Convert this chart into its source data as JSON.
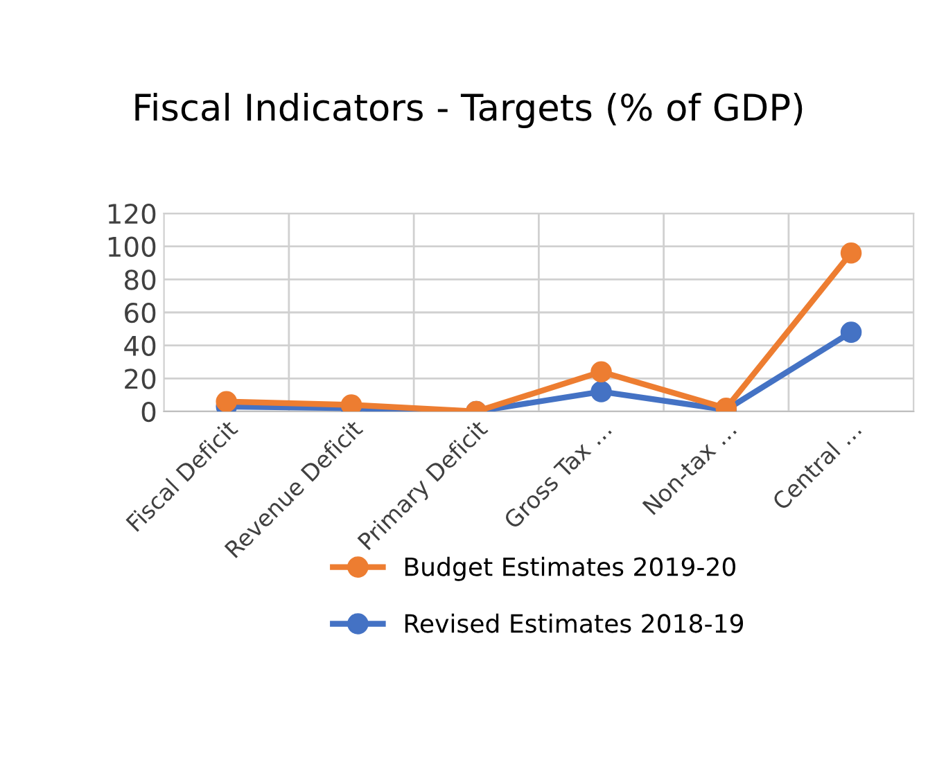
{
  "chart_data": {
    "type": "line",
    "title": "Fiscal Indicators - Targets (% of GDP)",
    "categories": [
      "Fiscal Deficit",
      "Revenue Deficit",
      "Primary Deficit",
      "Gross Tax …",
      "Non-tax …",
      "Central …"
    ],
    "series": [
      {
        "name": "Budget Estimates 2019-20",
        "color": "#ed7d31",
        "values": [
          6,
          4,
          0,
          24,
          2,
          96
        ]
      },
      {
        "name": "Revised Estimates 2018-19",
        "color": "#4472c4",
        "values": [
          3,
          2,
          0,
          12,
          1,
          48
        ]
      }
    ],
    "ylim": [
      0,
      120
    ],
    "yticks": [
      0,
      20,
      40,
      60,
      80,
      100,
      120
    ],
    "grid": true,
    "legend": "bottom",
    "marker": "circle",
    "line_style": "solid"
  }
}
